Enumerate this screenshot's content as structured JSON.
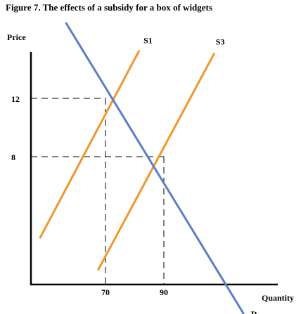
{
  "chart_data": {
    "type": "line",
    "title": "Figure 7.  The effects of a subsidy for a box of widgets",
    "xlabel": "Quantity",
    "ylabel": "Price",
    "x_ticks": [
      70,
      90
    ],
    "y_ticks": [
      12,
      8
    ],
    "series": [
      {
        "name": "S1",
        "color": "#f0962e",
        "points": [
          [
            47.5,
            2.4
          ],
          [
            81.6,
            15.3
          ]
        ]
      },
      {
        "name": "S3",
        "color": "#f0962e",
        "points": [
          [
            67.4,
            0.2
          ],
          [
            107.3,
            15.1
          ]
        ]
      },
      {
        "name": "D",
        "color": "#5b7fc4",
        "points": [
          [
            56.4,
            17.2
          ],
          [
            117.4,
            -2.8
          ]
        ]
      }
    ],
    "equilibria": [
      {
        "x": 70,
        "y": 12
      },
      {
        "x": 90,
        "y": 8
      }
    ]
  }
}
